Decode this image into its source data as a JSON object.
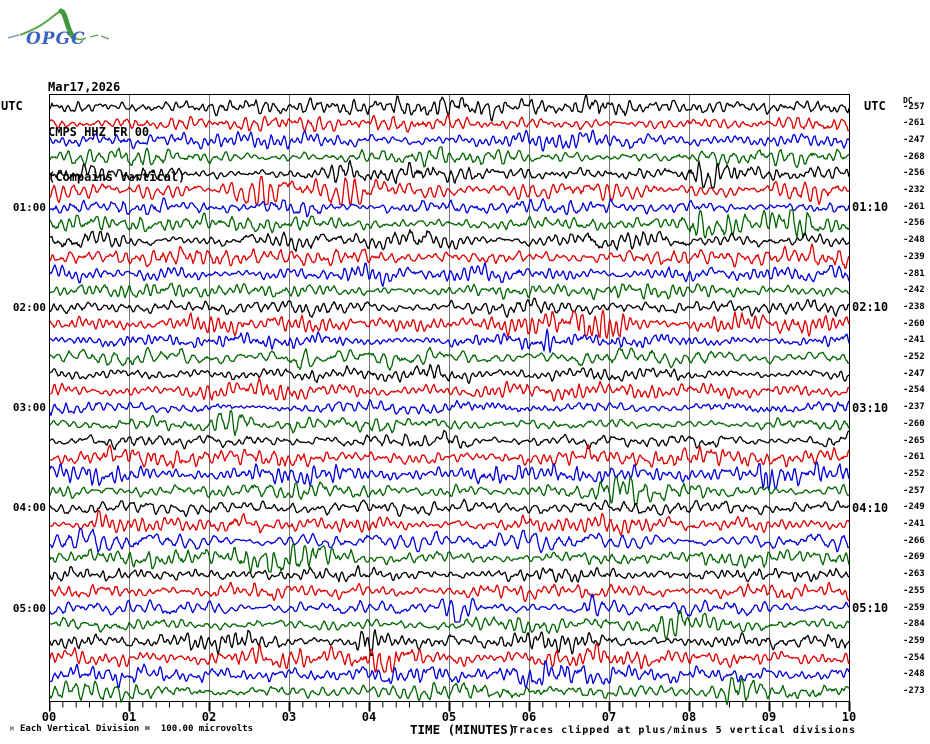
{
  "logo": {
    "text": "OPGC"
  },
  "header": {
    "date": "Mar17,2026",
    "station": "CMPS HHZ FR 00",
    "location": "(Compains Vertical)"
  },
  "axis": {
    "utc_left": "UTC",
    "utc_right": "UTC",
    "dc_label": "DC",
    "x_labels": [
      "00",
      "01",
      "02",
      "03",
      "04",
      "05",
      "06",
      "07",
      "08",
      "09",
      "10"
    ],
    "x_title": "TIME (MINUTES)",
    "footnote_left": "Each Vertical Division =  100.00 microvolts",
    "footnote_right": "Traces clipped at plus/minus 5 vertical divisions",
    "corner_mark": "M"
  },
  "chart_data": {
    "type": "line",
    "subtype": "helicorder-seismogram",
    "station": "CMPS HHZ FR 00",
    "date": "Mar17,2026",
    "location": "(Compains Vertical)",
    "x_axis": {
      "label": "TIME (MINUTES)",
      "range": [
        0,
        10
      ],
      "major_tick_minutes": 1,
      "minor_tick_seconds": 10
    },
    "minutes_per_row": 10,
    "start_utc": "00:00",
    "end_utc": "06:00",
    "vertical_division_microvolts": 100.0,
    "clip_divisions": 5,
    "grid": "vertical-minute-lines",
    "trace_color_cycle": [
      "#000000",
      "#e00000",
      "#0000dd",
      "#006600"
    ],
    "hour_labels_left": [
      "01:00",
      "02:00",
      "03:00",
      "04:00",
      "05:00"
    ],
    "hour_labels_right": [
      "01:10",
      "02:10",
      "03:10",
      "04:10",
      "05:10"
    ],
    "rows": [
      {
        "start": "00:00",
        "dc": -257,
        "left": "",
        "right": ""
      },
      {
        "start": "00:10",
        "dc": -261,
        "left": "",
        "right": ""
      },
      {
        "start": "00:20",
        "dc": -247,
        "left": "",
        "right": ""
      },
      {
        "start": "00:30",
        "dc": -268,
        "left": "",
        "right": ""
      },
      {
        "start": "00:40",
        "dc": -256,
        "left": "",
        "right": ""
      },
      {
        "start": "00:50",
        "dc": -232,
        "left": "",
        "right": ""
      },
      {
        "start": "01:00",
        "dc": -261,
        "left": "01:00",
        "right": "01:10"
      },
      {
        "start": "01:10",
        "dc": -256,
        "left": "",
        "right": ""
      },
      {
        "start": "01:20",
        "dc": -248,
        "left": "",
        "right": ""
      },
      {
        "start": "01:30",
        "dc": -239,
        "left": "",
        "right": ""
      },
      {
        "start": "01:40",
        "dc": -281,
        "left": "",
        "right": ""
      },
      {
        "start": "01:50",
        "dc": -242,
        "left": "",
        "right": ""
      },
      {
        "start": "02:00",
        "dc": -238,
        "left": "02:00",
        "right": "02:10"
      },
      {
        "start": "02:10",
        "dc": -260,
        "left": "",
        "right": ""
      },
      {
        "start": "02:20",
        "dc": -241,
        "left": "",
        "right": ""
      },
      {
        "start": "02:30",
        "dc": -252,
        "left": "",
        "right": ""
      },
      {
        "start": "02:40",
        "dc": -247,
        "left": "",
        "right": ""
      },
      {
        "start": "02:50",
        "dc": -254,
        "left": "",
        "right": ""
      },
      {
        "start": "03:00",
        "dc": -237,
        "left": "03:00",
        "right": "03:10"
      },
      {
        "start": "03:10",
        "dc": -260,
        "left": "",
        "right": ""
      },
      {
        "start": "03:20",
        "dc": -265,
        "left": "",
        "right": ""
      },
      {
        "start": "03:30",
        "dc": -261,
        "left": "",
        "right": ""
      },
      {
        "start": "03:40",
        "dc": -252,
        "left": "",
        "right": ""
      },
      {
        "start": "03:50",
        "dc": -257,
        "left": "",
        "right": ""
      },
      {
        "start": "04:00",
        "dc": -249,
        "left": "04:00",
        "right": "04:10"
      },
      {
        "start": "04:10",
        "dc": -241,
        "left": "",
        "right": ""
      },
      {
        "start": "04:20",
        "dc": -266,
        "left": "",
        "right": ""
      },
      {
        "start": "04:30",
        "dc": -269,
        "left": "",
        "right": ""
      },
      {
        "start": "04:40",
        "dc": -263,
        "left": "",
        "right": ""
      },
      {
        "start": "04:50",
        "dc": -255,
        "left": "",
        "right": ""
      },
      {
        "start": "05:00",
        "dc": -259,
        "left": "05:00",
        "right": "05:10"
      },
      {
        "start": "05:10",
        "dc": -284,
        "left": "",
        "right": ""
      },
      {
        "start": "05:20",
        "dc": -259,
        "left": "",
        "right": ""
      },
      {
        "start": "05:30",
        "dc": -254,
        "left": "",
        "right": ""
      },
      {
        "start": "05:40",
        "dc": -248,
        "left": "",
        "right": ""
      },
      {
        "start": "05:50",
        "dc": -273,
        "left": "",
        "right": ""
      }
    ]
  }
}
